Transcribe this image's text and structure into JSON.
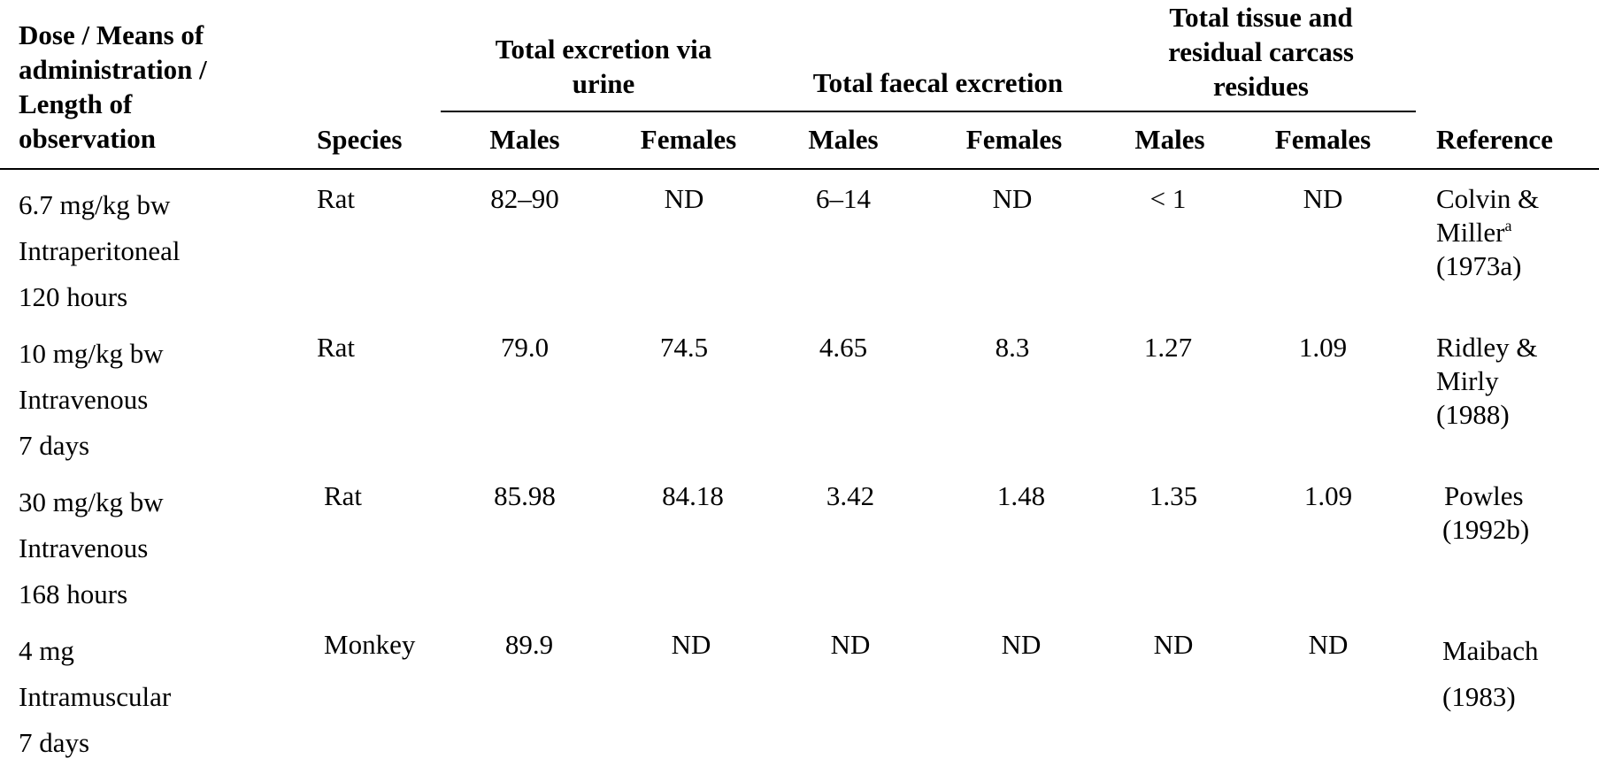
{
  "header": {
    "dose_col": [
      "Dose / Means of",
      "administration /",
      "Length of",
      "observation"
    ],
    "species": "Species",
    "urine_group": [
      "Total excretion via",
      "urine"
    ],
    "faecal_group": "Total faecal excretion",
    "tissue_group": [
      "Total tissue and",
      "residual carcass",
      "residues"
    ],
    "males": "Males",
    "females": "Females",
    "reference": "Reference"
  },
  "rows": [
    {
      "dose": [
        "6.7 mg/kg bw",
        "Intraperitoneal",
        "120 hours"
      ],
      "species": "Rat",
      "urine_m": "82–90",
      "urine_f": "ND",
      "faecal_m": "6–14",
      "faecal_f": "ND",
      "tissue_m": "< 1",
      "tissue_f": "ND",
      "reference": [
        "Colvin &",
        "Miller",
        "(1973a)"
      ],
      "ref_footnote": "a"
    },
    {
      "dose": [
        "10 mg/kg bw",
        "Intravenous",
        "7 days"
      ],
      "species": "Rat",
      "urine_m": "79.0",
      "urine_f": "74.5",
      "faecal_m": "4.65",
      "faecal_f": "8.3",
      "tissue_m": "1.27",
      "tissue_f": "1.09",
      "reference": [
        "Ridley &",
        "Mirly",
        "(1988)"
      ]
    },
    {
      "dose": [
        "30 mg/kg bw",
        "Intravenous",
        "168 hours"
      ],
      "species": "Rat",
      "urine_m": "85.98",
      "urine_f": "84.18",
      "faecal_m": "3.42",
      "faecal_f": "1.48",
      "tissue_m": "1.35",
      "tissue_f": "1.09",
      "reference": [
        "Powles",
        "(1992b)"
      ]
    },
    {
      "dose": [
        "4 mg",
        "Intramuscular",
        "7 days"
      ],
      "species": "Monkey",
      "urine_m": "89.9",
      "urine_f": "ND",
      "faecal_m": "ND",
      "faecal_f": "ND",
      "tissue_m": "ND",
      "tissue_f": "ND",
      "reference": [
        "Maibach",
        "(1983)"
      ]
    }
  ]
}
